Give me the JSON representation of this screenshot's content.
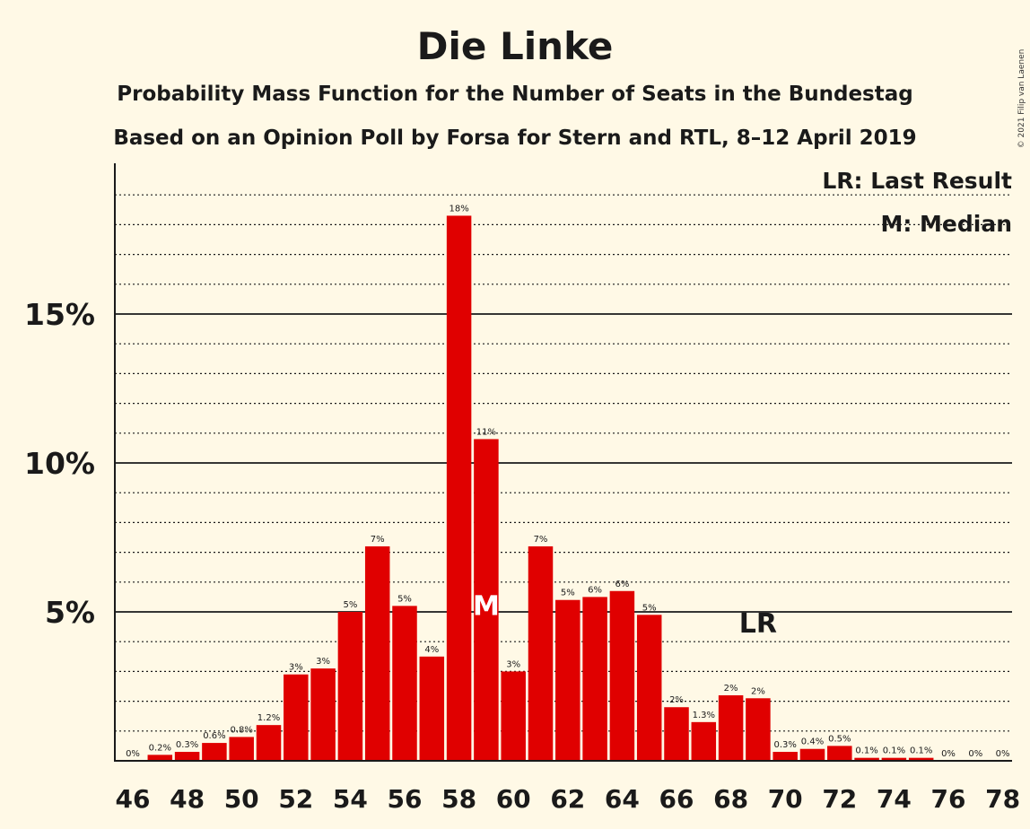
{
  "chart_data": {
    "type": "bar",
    "title": "Die Linke",
    "subtitle_lines": [
      "Probability Mass Function for the Number of Seats in the Bundestag",
      "Based on an Opinion Poll by Forsa for Stern and RTL, 8–12 April 2019"
    ],
    "copyright": "© 2021 Filip van Laenen",
    "x": [
      46,
      47,
      48,
      49,
      50,
      51,
      52,
      53,
      54,
      55,
      56,
      57,
      58,
      59,
      60,
      61,
      62,
      63,
      64,
      65,
      66,
      67,
      68,
      69,
      70,
      71,
      72,
      73,
      74,
      75,
      76,
      77,
      78
    ],
    "values": [
      0,
      0.2,
      0.3,
      0.6,
      0.8,
      1.2,
      2.9,
      3.1,
      5.0,
      7.2,
      5.2,
      3.5,
      18.3,
      10.8,
      3.0,
      7.2,
      5.4,
      5.5,
      5.7,
      4.9,
      1.8,
      1.3,
      2.2,
      2.1,
      0.3,
      0.4,
      0.5,
      0.1,
      0.1,
      0.1,
      0,
      0,
      0
    ],
    "bar_labels": [
      "0%",
      "0.2%",
      "0.3%",
      "0.6%",
      "0.8%",
      "1.2%",
      "3%",
      "3%",
      "5%",
      "7%",
      "5%",
      "4%",
      "18%",
      "11%",
      "3%",
      "7%",
      "5%",
      "6%",
      "6%",
      "5%",
      "2%",
      "1.3%",
      "2%",
      "2%",
      "0.3%",
      "0.4%",
      "0.5%",
      "0.1%",
      "0.1%",
      "0.1%",
      "0%",
      "0%",
      "0%"
    ],
    "x_tick_labels": [
      "46",
      "48",
      "50",
      "52",
      "54",
      "56",
      "58",
      "60",
      "62",
      "64",
      "66",
      "68",
      "70",
      "72",
      "74",
      "76",
      "78"
    ],
    "y_ticks": [
      {
        "value": 5,
        "label": "5%"
      },
      {
        "value": 10,
        "label": "10%"
      },
      {
        "value": 15,
        "label": "15%"
      }
    ],
    "ylim": [
      0,
      20
    ],
    "grid_minor_step": 1,
    "median_seat": 59,
    "median_marker": "M",
    "last_result_seat": 69,
    "last_result_marker": "LR",
    "legend": [
      "LR: Last Result",
      "M: Median"
    ],
    "legend_position": "top-right",
    "colors": {
      "bar": "#e00000",
      "background": "#fff9e6",
      "text": "#1a1a1a",
      "median_marker": "#ffffff"
    }
  }
}
